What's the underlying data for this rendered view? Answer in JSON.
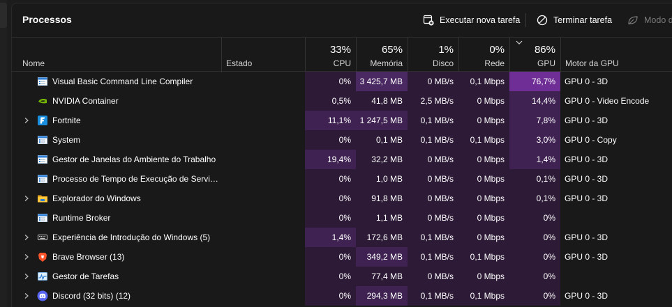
{
  "title": "Processos",
  "toolbar": {
    "run_task": "Executar nova tarefa",
    "end_task": "Terminar tarefa",
    "efficiency_mode": "Modo d"
  },
  "columns": {
    "name": "Nome",
    "status": "Estado",
    "cpu": {
      "pct": "33%",
      "label": "CPU"
    },
    "memory": {
      "pct": "65%",
      "label": "Memória"
    },
    "disk": {
      "pct": "1%",
      "label": "Disco"
    },
    "network": {
      "pct": "0%",
      "label": "Rede"
    },
    "gpu": {
      "pct": "86%",
      "label": "GPU"
    },
    "gpu_engine": "Motor da GPU"
  },
  "rows": [
    {
      "name": "Visual Basic Command Line Compiler",
      "icon": "app-window-icon",
      "expandable": false,
      "cpu": "0%",
      "cpu_heat": 0,
      "mem": "3 425,7 MB",
      "mem_heat": 2,
      "disk": "0 MB/s",
      "net": "0,1 Mbps",
      "gpu": "76,7%",
      "gpu_heat": 3,
      "engine": "GPU 0 - 3D"
    },
    {
      "name": "NVIDIA Container",
      "icon": "nvidia-icon",
      "expandable": false,
      "cpu": "0,5%",
      "cpu_heat": 0,
      "mem": "41,8 MB",
      "mem_heat": 0,
      "disk": "2,5 MB/s",
      "net": "0 Mbps",
      "gpu": "14,4%",
      "gpu_heat": 1,
      "engine": "GPU 0 - Video Encode"
    },
    {
      "name": "Fortnite",
      "icon": "fortnite-icon",
      "expandable": true,
      "cpu": "11,1%",
      "cpu_heat": 1,
      "mem": "1 247,5 MB",
      "mem_heat": 1,
      "disk": "0,1 MB/s",
      "net": "0 Mbps",
      "gpu": "7,8%",
      "gpu_heat": 1,
      "engine": "GPU 0 - 3D"
    },
    {
      "name": "System",
      "icon": "app-window-icon",
      "expandable": false,
      "cpu": "0%",
      "cpu_heat": 0,
      "mem": "0,1 MB",
      "mem_heat": 0,
      "disk": "0,1 MB/s",
      "net": "0,1 Mbps",
      "gpu": "3,0%",
      "gpu_heat": 1,
      "engine": "GPU 0 - Copy"
    },
    {
      "name": "Gestor de Janelas do Ambiente do Trabalho",
      "icon": "app-window-icon",
      "expandable": false,
      "cpu": "19,4%",
      "cpu_heat": 1,
      "mem": "32,2 MB",
      "mem_heat": 0,
      "disk": "0 MB/s",
      "net": "0 Mbps",
      "gpu": "1,4%",
      "gpu_heat": 1,
      "engine": "GPU 0 - 3D"
    },
    {
      "name": "Processo de Tempo de Execução de Servid...",
      "icon": "app-window-icon",
      "expandable": false,
      "cpu": "0%",
      "cpu_heat": 0,
      "mem": "1,0 MB",
      "mem_heat": 0,
      "disk": "0 MB/s",
      "net": "0 Mbps",
      "gpu": "0,1%",
      "gpu_heat": 0,
      "engine": "GPU 0 - 3D"
    },
    {
      "name": "Explorador do Windows",
      "icon": "folder-icon",
      "expandable": true,
      "cpu": "0%",
      "cpu_heat": 0,
      "mem": "91,8 MB",
      "mem_heat": 0,
      "disk": "0 MB/s",
      "net": "0 Mbps",
      "gpu": "0,1%",
      "gpu_heat": 0,
      "engine": "GPU 0 - 3D"
    },
    {
      "name": "Runtime Broker",
      "icon": "app-window-icon",
      "expandable": false,
      "cpu": "0%",
      "cpu_heat": 0,
      "mem": "1,1 MB",
      "mem_heat": 0,
      "disk": "0 MB/s",
      "net": "0 Mbps",
      "gpu": "0%",
      "gpu_heat": 0,
      "engine": ""
    },
    {
      "name": "Experiência de Introdução do Windows (5)",
      "icon": "keyboard-icon",
      "expandable": true,
      "cpu": "1,4%",
      "cpu_heat": 1,
      "mem": "172,6 MB",
      "mem_heat": 0,
      "disk": "0,1 MB/s",
      "net": "0 Mbps",
      "gpu": "0%",
      "gpu_heat": 0,
      "engine": "GPU 0 - 3D"
    },
    {
      "name": "Brave Browser (13)",
      "icon": "brave-icon",
      "expandable": true,
      "cpu": "0%",
      "cpu_heat": 0,
      "mem": "349,2 MB",
      "mem_heat": 1,
      "disk": "0,1 MB/s",
      "net": "0,1 Mbps",
      "gpu": "0%",
      "gpu_heat": 0,
      "engine": "GPU 0 - 3D"
    },
    {
      "name": "Gestor de Tarefas",
      "icon": "task-manager-icon",
      "expandable": true,
      "cpu": "0%",
      "cpu_heat": 0,
      "mem": "77,4 MB",
      "mem_heat": 0,
      "disk": "0 MB/s",
      "net": "0 Mbps",
      "gpu": "0%",
      "gpu_heat": 0,
      "engine": ""
    },
    {
      "name": "Discord (32 bits) (12)",
      "icon": "discord-icon",
      "expandable": true,
      "cpu": "0%",
      "cpu_heat": 0,
      "mem": "294,3 MB",
      "mem_heat": 1,
      "disk": "0,1 MB/s",
      "net": "0,1 Mbps",
      "gpu": "0%",
      "gpu_heat": 0,
      "engine": "GPU 0 - 3D"
    }
  ],
  "colors": {
    "heat_0": "#2d1a36",
    "heat_1": "#3f2252",
    "heat_2": "#4a2862",
    "heat_3": "#6e2e96",
    "plain_num_bg": "#2a1933"
  }
}
